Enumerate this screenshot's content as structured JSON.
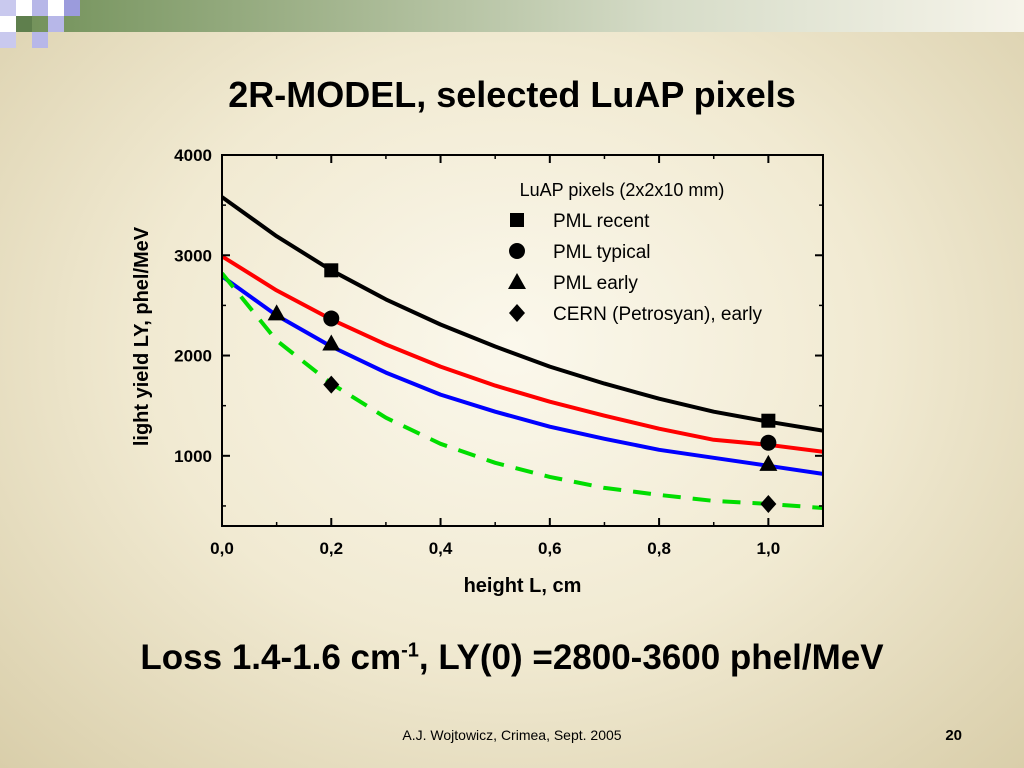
{
  "slide": {
    "title": "2R-MODEL, selected LuAP pixels",
    "caption_main": "Loss 1.4-1.6 cm",
    "caption_sup": "-1",
    "caption_rest": ", LY(0) =2800-3600 phel/MeV",
    "footer": "A.J. Wojtowicz, Crimea, Sept. 2005",
    "page_number": "20"
  },
  "chart_data": {
    "type": "scatter",
    "title": "",
    "xlabel": "height L, cm",
    "ylabel": "light yield LY, phel/MeV",
    "xlim": [
      0,
      1.1
    ],
    "ylim": [
      300,
      4000
    ],
    "xticks": [
      "0,0",
      "0,2",
      "0,4",
      "0,6",
      "0,8",
      "1,0"
    ],
    "xtick_values": [
      0,
      0.2,
      0.4,
      0.6,
      0.8,
      1.0
    ],
    "yticks": [
      "1000",
      "2000",
      "3000",
      "4000"
    ],
    "ytick_values": [
      1000,
      2000,
      3000,
      4000
    ],
    "legend_title": "LuAP pixels (2x2x10 mm)",
    "legend_position": "top-right",
    "series": [
      {
        "name": "PML recent",
        "marker": "square",
        "color": "#000000",
        "x": [
          0.2,
          1.0
        ],
        "y": [
          2850,
          1350
        ]
      },
      {
        "name": "PML typical",
        "marker": "circle",
        "color": "#000000",
        "x": [
          0.2,
          1.0
        ],
        "y": [
          2370,
          1130
        ]
      },
      {
        "name": "PML early",
        "marker": "triangle",
        "color": "#000000",
        "x": [
          0.1,
          0.2,
          1.0
        ],
        "y": [
          2420,
          2120,
          920
        ]
      },
      {
        "name": "CERN (Petrosyan), early",
        "marker": "diamond",
        "color": "#000000",
        "x": [
          0.2,
          1.0
        ],
        "y": [
          1710,
          520
        ]
      }
    ],
    "fit_curves": [
      {
        "color": "#000000",
        "style": "solid",
        "x": [
          0,
          0.1,
          0.2,
          0.3,
          0.4,
          0.5,
          0.6,
          0.7,
          0.8,
          0.9,
          1.0,
          1.1
        ],
        "y": [
          3580,
          3190,
          2850,
          2560,
          2310,
          2090,
          1890,
          1720,
          1570,
          1440,
          1340,
          1250
        ]
      },
      {
        "color": "#ff0000",
        "style": "solid",
        "x": [
          0,
          0.1,
          0.2,
          0.3,
          0.4,
          0.5,
          0.6,
          0.7,
          0.8,
          0.9,
          1.0,
          1.1
        ],
        "y": [
          2990,
          2650,
          2360,
          2110,
          1890,
          1700,
          1540,
          1400,
          1270,
          1160,
          1110,
          1040
        ]
      },
      {
        "color": "#0000ff",
        "style": "solid",
        "x": [
          0,
          0.1,
          0.2,
          0.3,
          0.4,
          0.5,
          0.6,
          0.7,
          0.8,
          0.9,
          1.0,
          1.1
        ],
        "y": [
          2790,
          2400,
          2090,
          1830,
          1610,
          1440,
          1290,
          1170,
          1060,
          980,
          900,
          820
        ]
      },
      {
        "color": "#00dd00",
        "style": "dashed",
        "x": [
          0,
          0.1,
          0.2,
          0.3,
          0.4,
          0.5,
          0.6,
          0.7,
          0.8,
          0.9,
          1.0,
          1.1
        ],
        "y": [
          2820,
          2150,
          1720,
          1380,
          1120,
          930,
          790,
          680,
          610,
          550,
          520,
          480
        ]
      }
    ]
  }
}
